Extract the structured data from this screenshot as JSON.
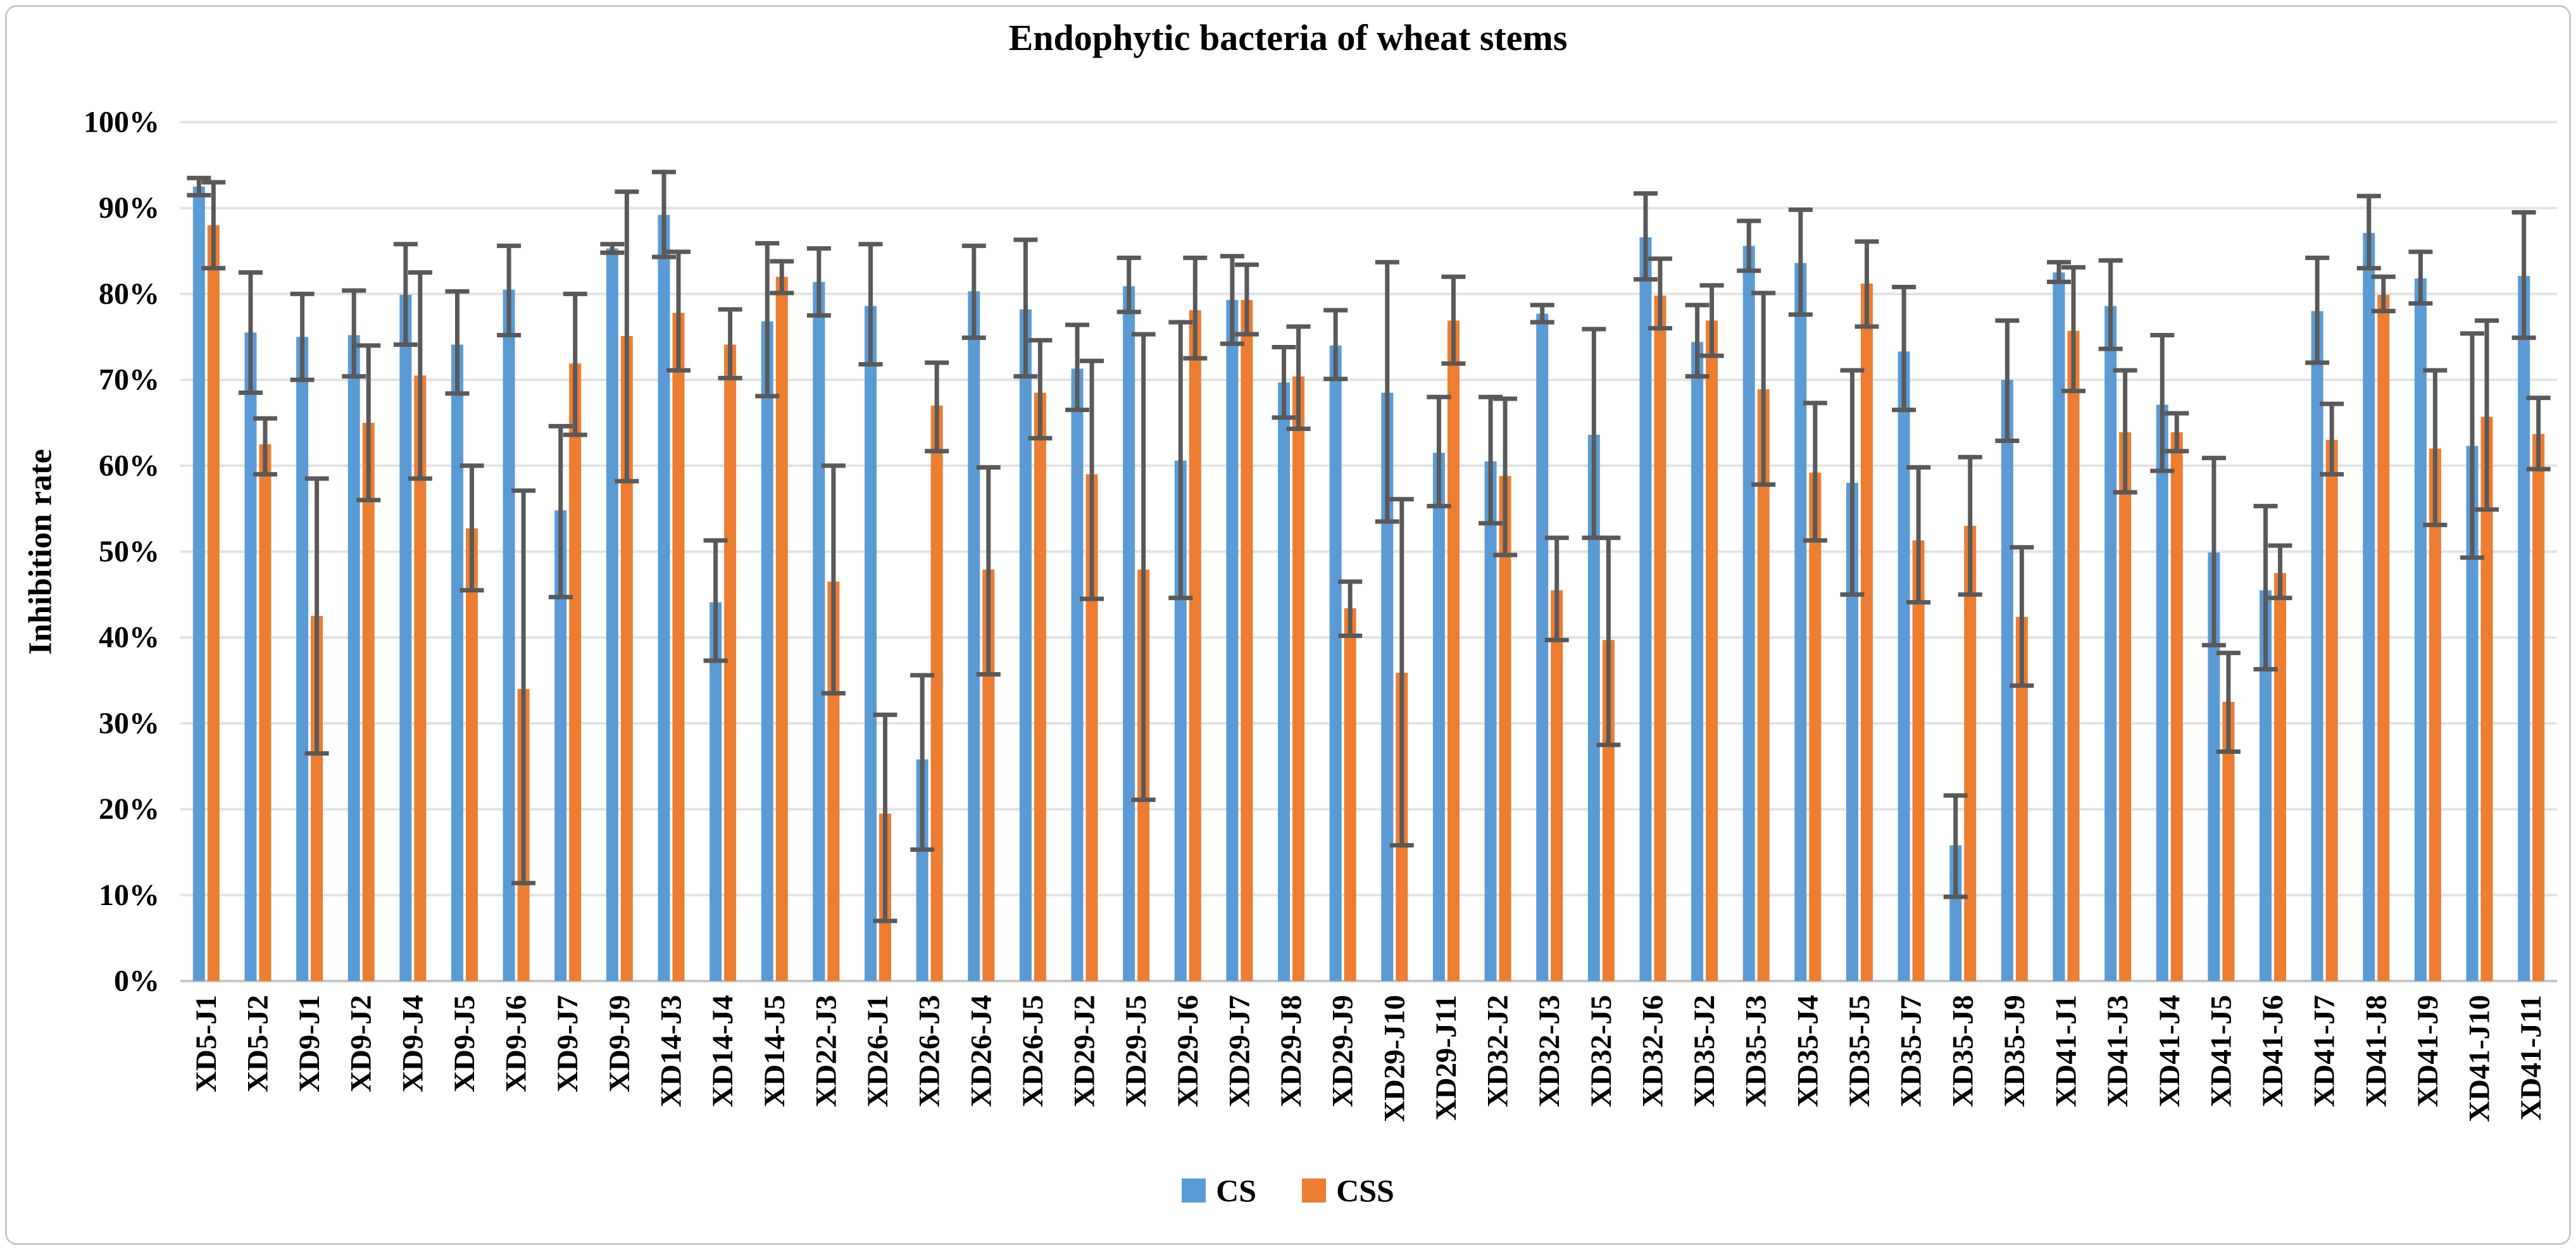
{
  "chart_data": {
    "type": "bar",
    "title": "Endophytic bacteria of wheat stems",
    "ylabel": "Inhibition rate",
    "xlabel": "",
    "ylim": [
      0,
      100
    ],
    "grid": "horizontal",
    "legend_position": "bottom",
    "y_ticks": [
      "0%",
      "10%",
      "20%",
      "30%",
      "40%",
      "50%",
      "60%",
      "70%",
      "80%",
      "90%",
      "100%"
    ],
    "categories": [
      "XD5-J1",
      "XD5-J2",
      "XD9-J1",
      "XD9-J2",
      "XD9-J4",
      "XD9-J5",
      "XD9-J6",
      "XD9-J7",
      "XD9-J9",
      "XD14-J3",
      "XD14-J4",
      "XD14-J5",
      "XD22-J3",
      "XD26-J1",
      "XD26-J3",
      "XD26-J4",
      "XD26-J5",
      "XD29-J2",
      "XD29-J5",
      "XD29-J6",
      "XD29-J7",
      "XD29-J8",
      "XD29-J9",
      "XD29-J10",
      "XD29-J11",
      "XD32-J2",
      "XD32-J3",
      "XD32-J5",
      "XD32-J6",
      "XD35-J2",
      "XD35-J3",
      "XD35-J4",
      "XD35-J5",
      "XD35-J7",
      "XD35-J8",
      "XD35-J9",
      "XD41-J1",
      "XD41-J3",
      "XD41-J4",
      "XD41-J5",
      "XD41-J6",
      "XD41-J7",
      "XD41-J8",
      "XD41-J9",
      "XD41-J10",
      "XD41-J11"
    ],
    "series": [
      {
        "name": "CS",
        "color": "#5B9BD5",
        "values": [
          92.5,
          75.5,
          75.0,
          75.2,
          79.9,
          74.1,
          80.5,
          54.8,
          85.3,
          89.2,
          44.1,
          76.8,
          81.4,
          78.6,
          25.8,
          80.3,
          78.2,
          71.3,
          80.9,
          60.6,
          79.3,
          69.7,
          74.0,
          68.5,
          61.5,
          60.5,
          77.7,
          63.6,
          86.6,
          74.4,
          85.6,
          83.6,
          58.0,
          73.3,
          15.8,
          70.0,
          82.5,
          78.6,
          67.1,
          49.9,
          45.5,
          78.0,
          87.1,
          81.8,
          62.3,
          82.1
        ],
        "err_low": [
          91.5,
          68.5,
          70.0,
          70.4,
          74.1,
          68.4,
          75.2,
          44.7,
          84.8,
          84.3,
          37.3,
          68.1,
          77.5,
          71.8,
          15.3,
          74.9,
          70.4,
          66.5,
          77.9,
          44.6,
          74.2,
          65.6,
          70.1,
          53.5,
          55.3,
          53.3,
          76.7,
          51.6,
          81.7,
          70.4,
          82.7,
          77.6,
          45.0,
          66.5,
          9.8,
          62.9,
          81.4,
          73.6,
          59.4,
          39.1,
          36.3,
          72.0,
          83.0,
          78.9,
          49.3,
          74.9
        ],
        "err_high": [
          93.5,
          82.5,
          80.0,
          80.4,
          85.8,
          80.3,
          85.6,
          64.6,
          85.8,
          94.2,
          51.3,
          85.9,
          85.3,
          85.8,
          35.6,
          85.6,
          86.3,
          76.4,
          84.2,
          76.7,
          84.4,
          73.8,
          78.1,
          83.7,
          68.0,
          68.0,
          78.7,
          75.9,
          91.7,
          78.7,
          88.5,
          89.8,
          71.1,
          80.8,
          21.6,
          76.9,
          83.7,
          83.9,
          75.2,
          60.9,
          55.3,
          84.2,
          91.4,
          84.9,
          75.4,
          89.5
        ]
      },
      {
        "name": "CSS",
        "color": "#ED7D31",
        "values": [
          88.0,
          62.5,
          42.5,
          65.0,
          70.5,
          52.7,
          34.0,
          71.9,
          75.1,
          77.8,
          74.1,
          82.0,
          46.5,
          19.5,
          67.0,
          47.9,
          68.5,
          59.0,
          47.9,
          78.1,
          79.3,
          70.4,
          43.4,
          35.9,
          76.9,
          58.8,
          45.5,
          39.7,
          79.8,
          76.9,
          68.9,
          59.2,
          81.2,
          51.3,
          53.0,
          42.4,
          75.7,
          63.9,
          63.9,
          32.5,
          47.5,
          63.0,
          79.9,
          62.0,
          65.7,
          63.7
        ],
        "err_low": [
          83.0,
          59.0,
          26.5,
          56.0,
          58.5,
          45.5,
          11.4,
          63.6,
          58.2,
          71.1,
          70.2,
          80.1,
          33.5,
          7.0,
          61.7,
          35.7,
          63.2,
          44.5,
          21.1,
          72.5,
          75.3,
          64.3,
          40.2,
          15.8,
          71.9,
          49.6,
          39.7,
          27.5,
          76.0,
          72.8,
          57.8,
          51.3,
          76.2,
          44.1,
          45.0,
          34.4,
          68.7,
          56.9,
          61.7,
          26.7,
          44.6,
          59.0,
          78.0,
          53.1,
          54.9,
          59.6
        ],
        "err_high": [
          93.0,
          65.5,
          58.5,
          74.0,
          82.5,
          60.0,
          57.1,
          80.0,
          91.9,
          84.9,
          78.2,
          83.8,
          60.0,
          31.0,
          72.0,
          59.8,
          74.6,
          72.2,
          75.3,
          84.2,
          83.4,
          76.2,
          46.5,
          56.1,
          82.0,
          67.8,
          51.6,
          51.6,
          84.1,
          81.0,
          80.1,
          67.3,
          86.1,
          59.8,
          61.0,
          50.5,
          83.1,
          71.1,
          66.1,
          38.2,
          50.7,
          67.2,
          82.0,
          71.1,
          76.9,
          67.9
        ]
      }
    ],
    "colors": {
      "error_bar": "#595959",
      "gridline": "#e3e3e3",
      "axis_line": "#c6c6c6"
    }
  }
}
